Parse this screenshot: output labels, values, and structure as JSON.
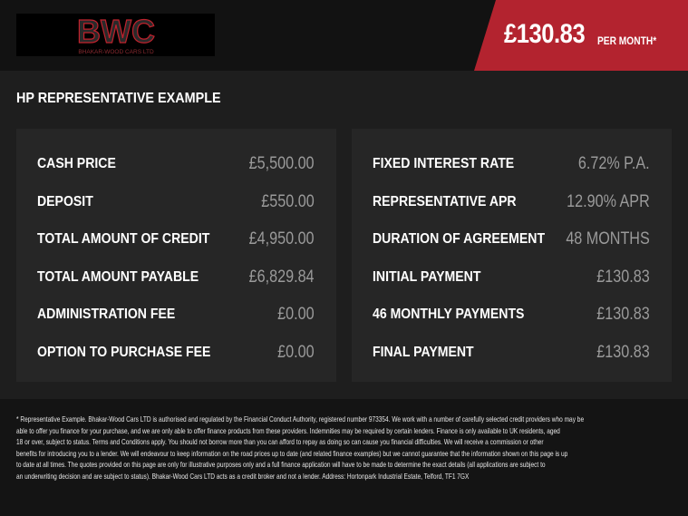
{
  "header": {
    "logo": {
      "text": "BWC",
      "subtitle": "BHAKAR-WOOD CARS LTD"
    },
    "monthly_price": "£130.83",
    "per_month_label": "PER MONTH*"
  },
  "colors": {
    "accent": "#b3232f",
    "panel": "#262626",
    "header": "#121212"
  },
  "title": "HP REPRESENTATIVE EXAMPLE",
  "left_panel": [
    {
      "label": "CASH PRICE",
      "value": "£5,500.00"
    },
    {
      "label": "DEPOSIT",
      "value": "£550.00"
    },
    {
      "label": "TOTAL AMOUNT OF CREDIT",
      "value": "£4,950.00"
    },
    {
      "label": "TOTAL AMOUNT PAYABLE",
      "value": "£6,829.84"
    },
    {
      "label": "ADMINISTRATION FEE",
      "value": "£0.00"
    },
    {
      "label": "OPTION TO PURCHASE FEE",
      "value": "£0.00"
    }
  ],
  "right_panel": [
    {
      "label": "FIXED INTEREST RATE",
      "value": "6.72% P.A."
    },
    {
      "label": "REPRESENTATIVE APR",
      "value": "12.90% APR"
    },
    {
      "label": "DURATION OF AGREEMENT",
      "value": "48 MONTHS"
    },
    {
      "label": "INITIAL PAYMENT",
      "value": "£130.83"
    },
    {
      "label": "46 MONTHLY PAYMENTS",
      "value": "£130.83"
    },
    {
      "label": "FINAL PAYMENT",
      "value": "£130.83"
    }
  ],
  "disclaimer": [
    "* Representative Example. Bhakar-Wood Cars LTD is authorised and regulated by the Financial Conduct Authority, registered number 973354. We work with a number of carefully selected credit providers who may be",
    "able to offer you finance for your purchase, and we are only able to offer finance products from these providers. Indemnities may be required by certain lenders. Finance is only available to UK residents, aged",
    "18 or over, subject to status. Terms and Conditions apply. You should not borrow more than you can afford to repay as doing so can cause you financial difficulties. We will receive a commission or other",
    "benefits for introducing you to a lender. We will endeavour to keep information on the road prices up to date (and related finance examples) but we cannot guarantee that the information shown on this page is up",
    "to date at all times. The quotes provided on this page are only for illustrative purposes only and a full finance application will have to be made to determine the exact details (all applications are subject to",
    "an underwriting decision and are subject to status). Bhakar-Wood Cars LTD acts as a credit broker and not a lender. Address: Hortonpark Industrial Estate, Telford, TF1 7GX"
  ]
}
